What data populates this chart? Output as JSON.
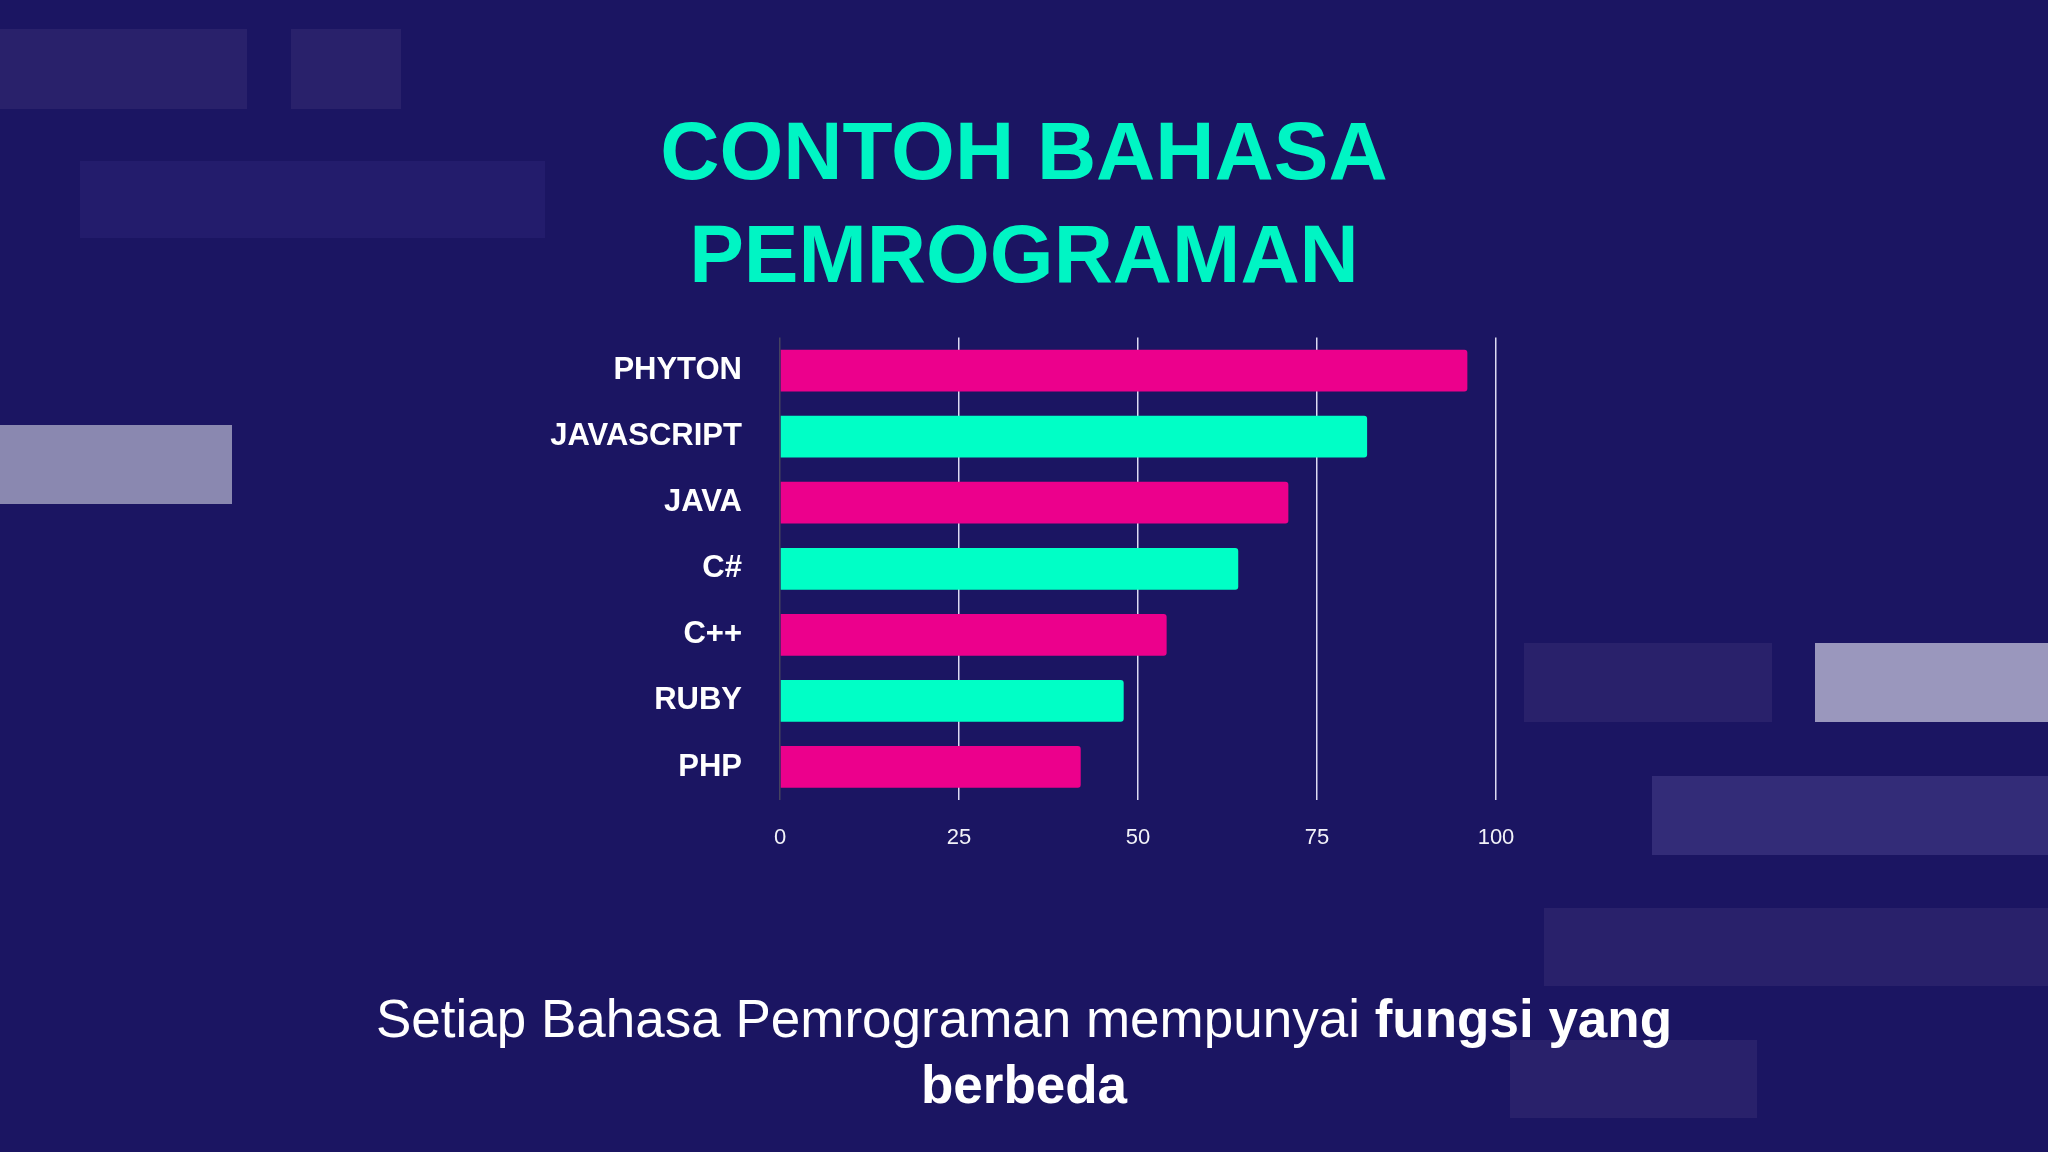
{
  "chart_data": {
    "type": "bar",
    "orientation": "horizontal",
    "title": "CONTOH BAHASA PEMROGRAMAN",
    "categories": [
      "PHYTON",
      "JAVASCRIPT",
      "JAVA",
      "C#",
      "C++",
      "RUBY",
      "PHP"
    ],
    "values": [
      96,
      82,
      71,
      64,
      54,
      48,
      42
    ],
    "colors": [
      "#ec008c",
      "#00ffc6",
      "#ec008c",
      "#00ffc6",
      "#ec008c",
      "#00ffc6",
      "#ec008c"
    ],
    "xlim": [
      0,
      100
    ],
    "xticks": [
      0,
      25,
      50,
      75,
      100
    ],
    "grid": "x",
    "annotations": [
      "Setiap Bahasa Pemrograman mempunyai fungsi yang berbeda"
    ]
  }
}
